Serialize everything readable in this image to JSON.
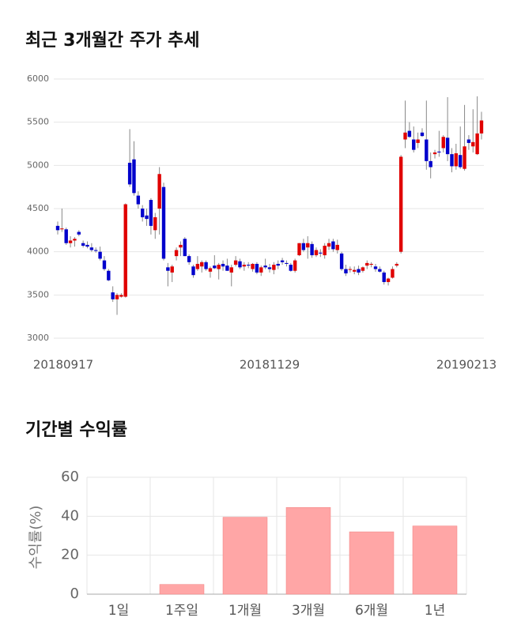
{
  "chart_data": [
    {
      "type": "candlestick",
      "title": "최근 3개월간 주가 추세",
      "categories": [
        "20180917",
        null,
        null,
        null,
        null,
        null,
        null,
        null,
        null,
        null,
        null,
        null,
        null,
        null,
        null,
        null,
        null,
        null,
        null,
        null,
        null,
        null,
        null,
        null,
        null,
        null,
        null,
        null,
        null,
        null,
        null,
        null,
        null,
        null,
        null,
        null,
        null,
        null,
        null,
        null,
        null,
        null,
        null,
        null,
        null,
        null,
        null,
        null,
        null,
        null,
        "20181129",
        null,
        null,
        null,
        null,
        null,
        null,
        null,
        null,
        null,
        null,
        null,
        null,
        null,
        null,
        null,
        null,
        null,
        null,
        null,
        null,
        null,
        null,
        null,
        null,
        null,
        null,
        null,
        null,
        null,
        null,
        null,
        null,
        null,
        null,
        null,
        null,
        null,
        null,
        null,
        null,
        null,
        null,
        null,
        null,
        null,
        null,
        null,
        null,
        null,
        "20190213"
      ],
      "open": [
        4300,
        4260,
        4260,
        4100,
        4130,
        4230,
        4100,
        4080,
        4050,
        4020,
        4000,
        3900,
        3780,
        3530,
        3450,
        3480,
        3480,
        5030,
        5070,
        4650,
        4500,
        4420,
        4600,
        4250,
        4500,
        4750,
        3820,
        3760,
        3950,
        4050,
        4150,
        3950,
        3830,
        3800,
        3830,
        3880,
        3770,
        3840,
        3800,
        3860,
        3840,
        3760,
        3850,
        3890,
        3830,
        3850,
        3800,
        3860,
        3760,
        3840,
        3820,
        3790,
        3860,
        3900,
        3870,
        3850,
        3780,
        3960,
        4100,
        4050,
        4090,
        3960,
        3990,
        3960,
        4060,
        4120,
        4020,
        3980,
        3800,
        3790,
        3770,
        3800,
        3780,
        3840,
        3850,
        3830,
        3800,
        3760,
        3650,
        3700,
        3840,
        4000,
        5300,
        5400,
        5300,
        5260,
        5380,
        5300,
        5050,
        5130,
        5160,
        5200,
        5320,
        5130,
        4990,
        5120,
        4960,
        5300,
        5220,
        5130,
        5370
      ],
      "high": [
        4350,
        4500,
        4280,
        4180,
        4170,
        4250,
        4130,
        4120,
        4100,
        4050,
        4060,
        3950,
        3800,
        3600,
        3520,
        3520,
        4560,
        5420,
        5280,
        4700,
        4540,
        4500,
        4620,
        4450,
        4980,
        4800,
        3870,
        3850,
        4050,
        4120,
        4170,
        3970,
        3850,
        3950,
        3900,
        3900,
        3830,
        3960,
        3870,
        3900,
        3920,
        3850,
        3950,
        3920,
        3880,
        3880,
        3870,
        3880,
        3840,
        3920,
        3860,
        3880,
        3900,
        3930,
        3900,
        3870,
        3920,
        4100,
        4150,
        4180,
        4120,
        4050,
        4030,
        4100,
        4150,
        4150,
        4140,
        4000,
        3850,
        3830,
        3830,
        3840,
        3830,
        3900,
        3880,
        3860,
        3830,
        3780,
        3700,
        3830,
        3880,
        5120,
        5750,
        5500,
        5450,
        5380,
        5430,
        5750,
        5150,
        5180,
        5400,
        5350,
        5790,
        5200,
        5250,
        5450,
        5700,
        5350,
        5650,
        5800,
        5620
      ],
      "low": [
        4200,
        4230,
        4080,
        4050,
        4060,
        4180,
        4050,
        4040,
        4000,
        3990,
        3900,
        3780,
        3660,
        3420,
        3270,
        3470,
        3470,
        4750,
        4650,
        4500,
        4350,
        4300,
        4200,
        4150,
        4200,
        3900,
        3600,
        3650,
        3900,
        3950,
        3950,
        3850,
        3700,
        3780,
        3760,
        3780,
        3700,
        3800,
        3680,
        3780,
        3780,
        3600,
        3830,
        3800,
        3780,
        3810,
        3770,
        3740,
        3720,
        3800,
        3760,
        3740,
        3800,
        3850,
        3830,
        3770,
        3760,
        3950,
        4000,
        3920,
        3930,
        3940,
        3940,
        3920,
        4020,
        4000,
        3980,
        3780,
        3720,
        3760,
        3740,
        3730,
        3760,
        3800,
        3820,
        3770,
        3760,
        3620,
        3610,
        3690,
        3820,
        3980,
        5200,
        5320,
        5150,
        5200,
        5330,
        4950,
        4850,
        5080,
        5100,
        5150,
        5050,
        4920,
        4950,
        4960,
        4940,
        5180,
        5150,
        5120,
        5300
      ],
      "close": [
        4250,
        4270,
        4100,
        4130,
        4150,
        4200,
        4070,
        4060,
        4020,
        4010,
        3920,
        3800,
        3670,
        3450,
        3500,
        3500,
        4550,
        4780,
        4680,
        4550,
        4400,
        4380,
        4300,
        4400,
        4900,
        3920,
        3780,
        3830,
        4020,
        4080,
        3950,
        3880,
        3730,
        3860,
        3880,
        3800,
        3810,
        3810,
        3850,
        3830,
        3780,
        3820,
        3900,
        3820,
        3850,
        3840,
        3860,
        3760,
        3820,
        3820,
        3800,
        3850,
        3840,
        3880,
        3860,
        3780,
        3900,
        4100,
        4020,
        4100,
        3960,
        4020,
        3980,
        4070,
        4100,
        4030,
        4080,
        3800,
        3750,
        3800,
        3790,
        3760,
        3820,
        3870,
        3860,
        3800,
        3770,
        3650,
        3690,
        3800,
        3860,
        5100,
        5380,
        5330,
        5180,
        5300,
        5340,
        5050,
        4980,
        5150,
        5150,
        5330,
        5130,
        4990,
        5140,
        4980,
        5220,
        5260,
        5270,
        5370,
        5520
      ],
      "up_color": "#e00000",
      "down_color": "#0000cc",
      "ylim": [
        3000,
        6000
      ],
      "yticks": [
        3000,
        3500,
        4000,
        4500,
        5000,
        5500,
        6000
      ],
      "grid": true
    },
    {
      "type": "bar",
      "title": "기간별 수익률",
      "ylabel": "수익률(%)",
      "categories": [
        "1일",
        "1주일",
        "1개월",
        "3개월",
        "6개월",
        "1년"
      ],
      "values": [
        0,
        5,
        39.5,
        44.5,
        32,
        35
      ],
      "color": "#ffa6a6",
      "ylim": [
        0,
        60
      ],
      "yticks": [
        0,
        20,
        40,
        60
      ],
      "grid": true
    }
  ]
}
